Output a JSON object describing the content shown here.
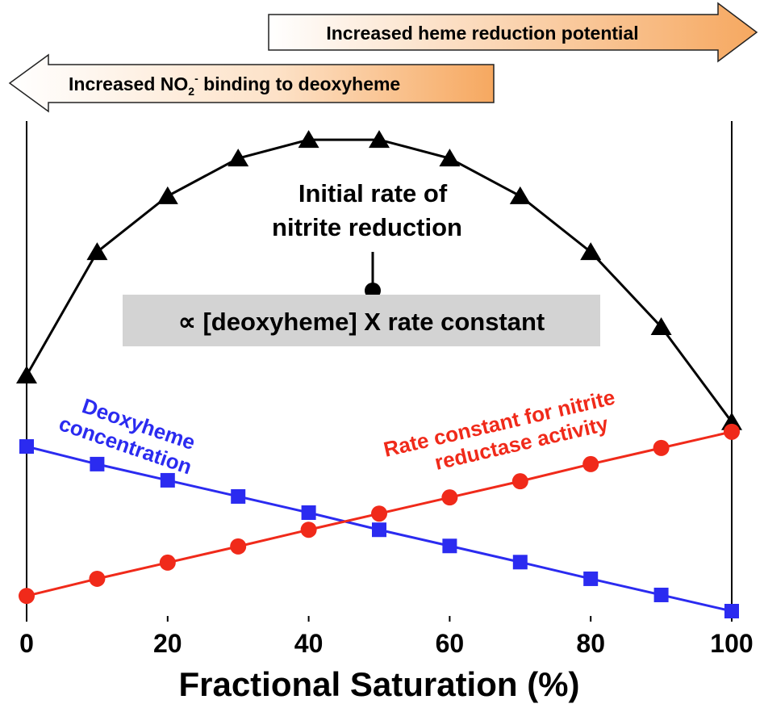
{
  "chart_data": {
    "type": "line",
    "x_label": "Fractional Saturation (%)",
    "xlim": [
      0,
      100
    ],
    "xticks": [
      0,
      20,
      40,
      60,
      80,
      100
    ],
    "ylim": [
      0,
      100
    ],
    "x": [
      0,
      10,
      20,
      30,
      40,
      50,
      60,
      70,
      80,
      90,
      100
    ],
    "series": [
      {
        "color": "#000000",
        "marker": "triangle",
        "values": [
          48.1,
          73.3,
          84.7,
          92.4,
          96.2,
          96.2,
          92.4,
          84.7,
          73.3,
          58.0,
          38.6
        ]
      },
      {
        "color": "#2b2bf0",
        "marker": "square",
        "values": [
          33.6,
          30.0,
          26.7,
          23.4,
          20.1,
          16.6,
          13.3,
          10.0,
          6.6,
          3.3,
          0
        ]
      },
      {
        "color": "#f02a1a",
        "marker": "circle",
        "values": [
          3.1,
          6.6,
          9.9,
          13.2,
          16.6,
          19.9,
          23.2,
          26.5,
          30.0,
          33.3,
          36.6
        ]
      }
    ],
    "annotations": {
      "right_arrow": "Increased heme reduction potential",
      "left_arrow": [
        "Increased NO",
        "2",
        "-",
        " binding to deoxyheme"
      ],
      "initial_rate": [
        "Initial rate of",
        "nitrite reduction"
      ],
      "proportional": "∝ [deoxyheme] X rate constant",
      "deoxyheme": [
        "Deoxyheme",
        "concentration"
      ],
      "rate_constant": [
        "Rate constant for nitrite",
        "reductase activity"
      ]
    }
  }
}
